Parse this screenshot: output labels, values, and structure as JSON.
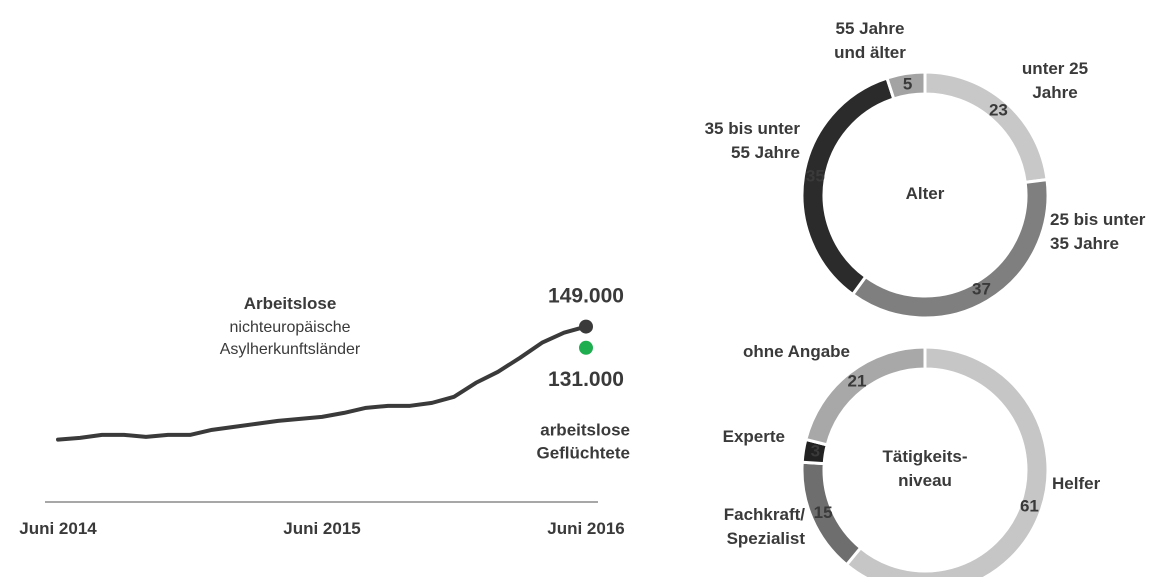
{
  "chart_data": [
    {
      "type": "line",
      "categories": [
        "Juni 2014",
        null,
        null,
        null,
        null,
        null,
        null,
        null,
        null,
        null,
        null,
        null,
        "Juni 2015",
        null,
        null,
        null,
        null,
        null,
        null,
        null,
        null,
        null,
        null,
        null,
        "Juni 2016"
      ],
      "series": [
        {
          "name": "Arbeitslose",
          "description": "nichteuropäische\nAsylherkunftsländer",
          "color": "#3a3a3a",
          "values": [
            53000,
            54500,
            57000,
            57000,
            55300,
            57000,
            57000,
            61300,
            63800,
            66400,
            68900,
            70600,
            72300,
            75700,
            80000,
            81700,
            81700,
            84200,
            89400,
            101300,
            110600,
            122500,
            135300,
            143800,
            149000
          ],
          "value_labels": [
            null,
            null,
            null,
            null,
            null,
            null,
            null,
            null,
            null,
            null,
            null,
            null,
            null,
            null,
            null,
            null,
            null,
            null,
            null,
            null,
            null,
            null,
            null,
            null,
            "149.000"
          ]
        },
        {
          "name": "arbeitslose\nGeflüchtete",
          "color": "#1fae4f",
          "values": [
            null,
            null,
            null,
            null,
            null,
            null,
            null,
            null,
            null,
            null,
            null,
            null,
            null,
            null,
            null,
            null,
            null,
            null,
            null,
            null,
            null,
            null,
            null,
            null,
            131000
          ],
          "value_labels": [
            null,
            null,
            null,
            null,
            null,
            null,
            null,
            null,
            null,
            null,
            null,
            null,
            null,
            null,
            null,
            null,
            null,
            null,
            null,
            null,
            null,
            null,
            null,
            null,
            "131.000"
          ]
        }
      ],
      "ylim": [
        0,
        175000
      ]
    },
    {
      "type": "donut",
      "title": "Alter",
      "categories": [
        "unter 25\nJahre",
        "25 bis unter\n35 Jahre",
        "35 bis unter\n55 Jahre",
        "55 Jahre\nund älter"
      ],
      "values": [
        23,
        37,
        35,
        5
      ],
      "colors": [
        "#c8c8c8",
        "#7f7f7f",
        "#2b2b2b",
        "#a3a3a3"
      ]
    },
    {
      "type": "donut",
      "title": "Tätigkeits-\nniveau",
      "categories": [
        "Helfer",
        "Fachkraft/\nSpezialist",
        "Experte",
        "ohne Angabe"
      ],
      "values": [
        61,
        15,
        3,
        21
      ],
      "colors": [
        "#c6c6c6",
        "#6e6e6e",
        "#222222",
        "#a8a8a8"
      ]
    }
  ]
}
